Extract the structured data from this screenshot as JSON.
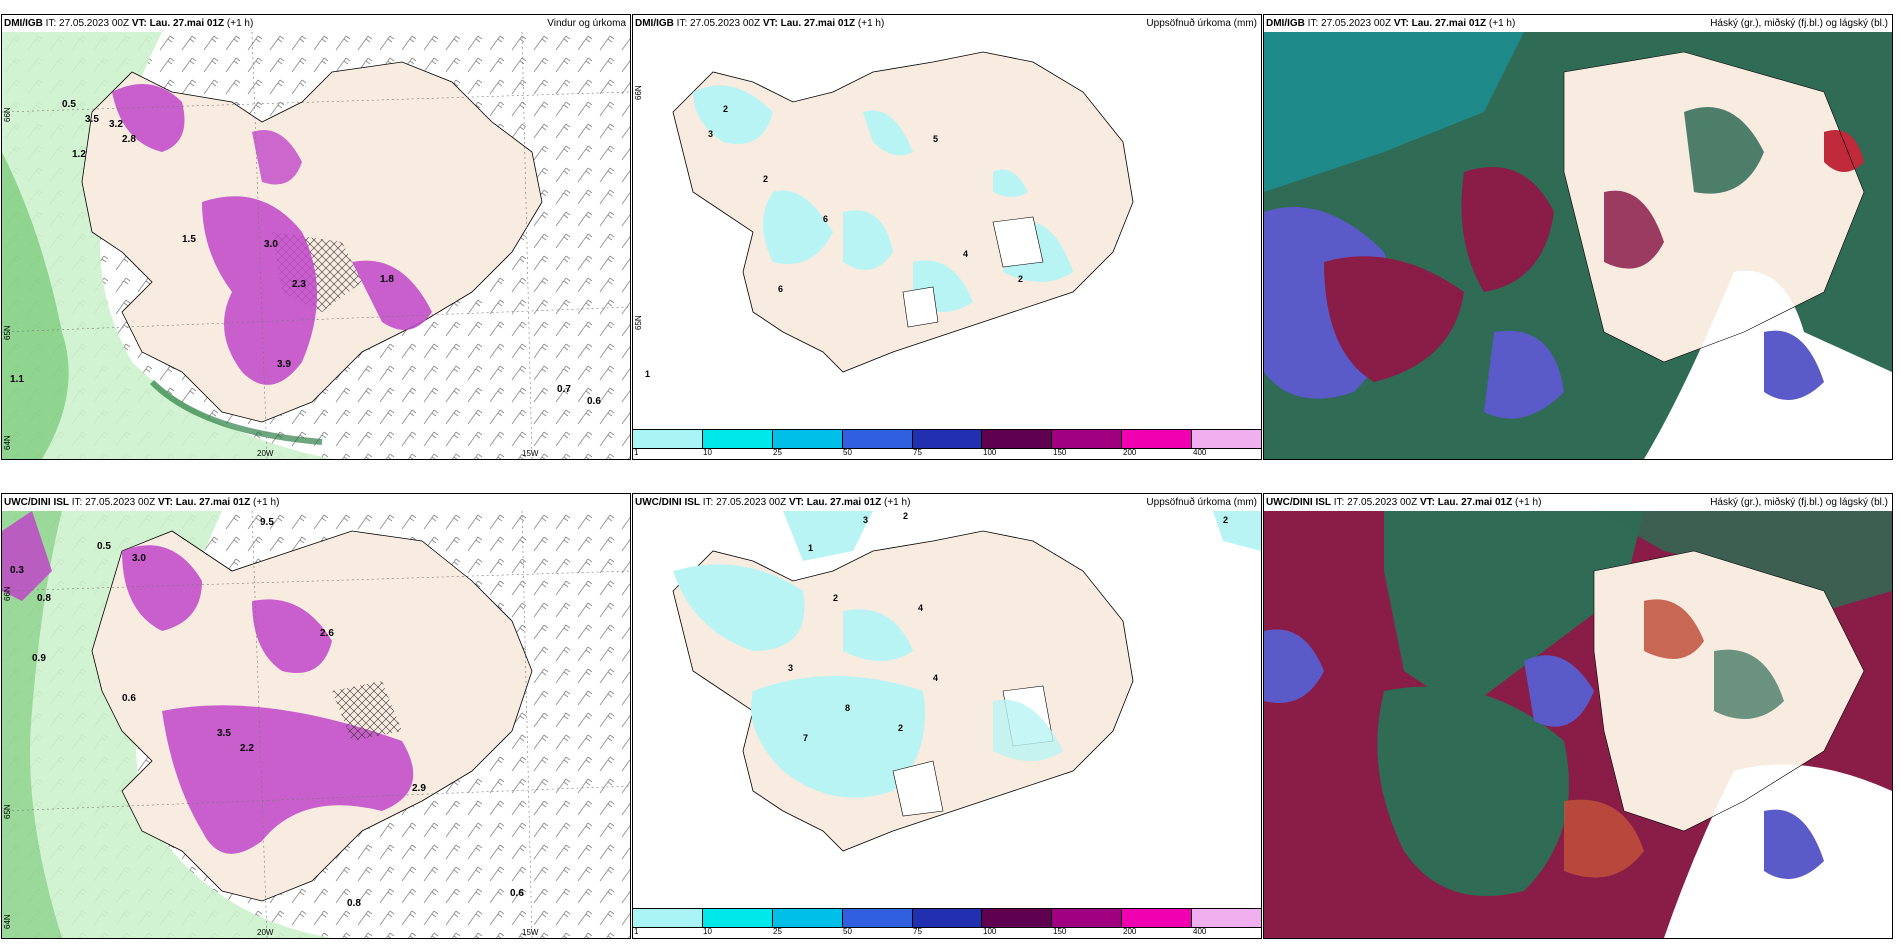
{
  "panels": [
    {
      "id": "p1",
      "source": "DMI/IGB",
      "init": "IT: 27.05.2023 00Z",
      "valid_label": "VT: Lau. 27.mai 01Z",
      "lead": "(+1 h)",
      "product": "Vindur og úrkoma",
      "axis_labels": [
        "66N",
        "65N",
        "64N",
        "20W",
        "15W"
      ],
      "values": [
        "0.5",
        "3.5",
        "3.2",
        "2.8",
        "1.2",
        "1.5",
        "3.0",
        "1.8",
        "2.3",
        "3.9",
        "0.7",
        "0.6",
        "1.1"
      ]
    },
    {
      "id": "p2",
      "source": "DMI/IGB",
      "init": "IT: 27.05.2023 00Z",
      "valid_label": "VT: Lau. 27.mai 01Z",
      "lead": "(+1 h)",
      "product": "Uppsöfnuð úrkoma (mm)",
      "axis_labels": [
        "66N",
        "65N"
      ],
      "values": [
        "2",
        "3",
        "2",
        "5",
        "6",
        "4",
        "2",
        "6",
        "1"
      ]
    },
    {
      "id": "p3",
      "source": "DMI/IGB",
      "init": "IT: 27.05.2023 00Z",
      "valid_label": "VT: Lau. 27.mai 01Z",
      "lead": "(+1 h)",
      "product": "Háský (gr.), miðský (fj.bl.) og lágský (bl.)",
      "axis_labels": [],
      "values": []
    },
    {
      "id": "p4",
      "source": "UWC/DINI ISL",
      "init": "IT: 27.05.2023 00Z",
      "valid_label": "VT: Lau. 27.mai 01Z",
      "lead": "(+1 h)",
      "product": "",
      "axis_labels": [
        "66N",
        "65N",
        "64N",
        "20W",
        "15W"
      ],
      "values": [
        "9.5",
        "0.3",
        "0.8",
        "0.9",
        "0.5",
        "3.0",
        "2.6",
        "0.6",
        "3.5",
        "2.2",
        "2.9",
        "0.8",
        "0.6"
      ]
    },
    {
      "id": "p5",
      "source": "UWC/DINI ISL",
      "init": "IT: 27.05.2023 00Z",
      "valid_label": "VT: Lau. 27.mai 01Z",
      "lead": "(+1 h)",
      "product": "Uppsöfnuð úrkoma (mm)",
      "axis_labels": [],
      "values": [
        "3",
        "2",
        "1",
        "2",
        "4",
        "3",
        "8",
        "4",
        "7",
        "2",
        "2"
      ]
    },
    {
      "id": "p6",
      "source": "UWC/DINI ISL",
      "init": "IT: 27.05.2023 00Z",
      "valid_label": "VT: Lau. 27.mai 01Z",
      "lead": "(+1 h)",
      "product": "Háský (gr.), miðský (fj.bl.) og lágský (bl.)",
      "axis_labels": [],
      "values": []
    }
  ],
  "legend": {
    "labels": [
      "1",
      "10",
      "25",
      "50",
      "75",
      "100",
      "150",
      "200",
      "400"
    ],
    "colors": [
      "#aaf4f6",
      "#00e8ea",
      "#00c0e8",
      "#3060e0",
      "#2030b0",
      "#600050",
      "#a00080",
      "#f000b0",
      "#f0b0f0"
    ]
  },
  "colors": {
    "land": "#f8ebe0",
    "precip_light": "#b9f4f4",
    "green_light": "#ccf2cc",
    "green_mid": "#63c063",
    "green_dark": "#0d6d2a",
    "magenta": "#c047c8",
    "cloud_dark_green": "#2f6b55",
    "cloud_maroon": "#8a1c48",
    "cloud_blue": "#5a5ac8",
    "cloud_teal": "#1f8a8a"
  }
}
